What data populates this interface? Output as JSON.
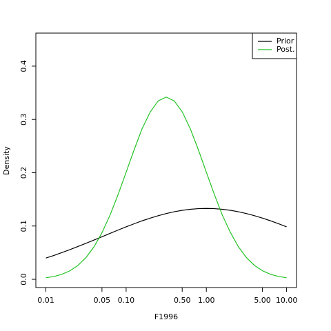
{
  "chart_data": {
    "type": "line",
    "xlabel": "F1996",
    "ylabel": "Density",
    "xlog": true,
    "xlim": [
      0.0075,
      13.3
    ],
    "ylim": [
      -0.0155,
      0.462
    ],
    "xticks": [
      0.01,
      0.05,
      {
        "value": 0.1,
        "label": "0.10"
      },
      {
        "value": 0.5,
        "label": "0.50"
      },
      {
        "value": 1,
        "label": "1.00"
      },
      {
        "value": 5,
        "label": "5.00"
      },
      {
        "value": 10,
        "label": "10.00"
      }
    ],
    "yticks": [
      {
        "value": 0,
        "label": "0.0"
      },
      0.1,
      0.2,
      0.3,
      0.4
    ],
    "legend": "top-right",
    "x": [
      0.01,
      0.0126,
      0.0158,
      0.02,
      0.0251,
      0.0316,
      0.0398,
      0.0501,
      0.0631,
      0.0794,
      0.1,
      0.126,
      0.158,
      0.2,
      0.251,
      0.316,
      0.398,
      0.501,
      0.631,
      0.794,
      1,
      1.26,
      1.58,
      2,
      2.51,
      3.16,
      3.98,
      5.01,
      6.31,
      7.94,
      10
    ],
    "series": [
      {
        "name": "Prior",
        "color": "#000000",
        "values": [
          0.0399,
          0.0448,
          0.0501,
          0.0557,
          0.0615,
          0.0675,
          0.0737,
          0.0799,
          0.0862,
          0.0924,
          0.0984,
          0.1042,
          0.1097,
          0.1148,
          0.1193,
          0.1234,
          0.1268,
          0.1294,
          0.1314,
          0.1326,
          0.133,
          0.1326,
          0.1314,
          0.1294,
          0.1268,
          0.1234,
          0.1193,
          0.1148,
          0.1097,
          0.1042,
          0.0984
        ]
      },
      {
        "name": "Post.",
        "color": "#22c222",
        "values": [
          0.00285,
          0.00528,
          0.00938,
          0.016,
          0.0261,
          0.0407,
          0.061,
          0.0876,
          0.1206,
          0.159,
          0.2009,
          0.2433,
          0.2824,
          0.3141,
          0.3348,
          0.342,
          0.3348,
          0.3141,
          0.2824,
          0.2433,
          0.2009,
          0.159,
          0.1206,
          0.0876,
          0.061,
          0.0407,
          0.0261,
          0.016,
          0.00938,
          0.00528,
          0.00285
        ]
      }
    ]
  }
}
